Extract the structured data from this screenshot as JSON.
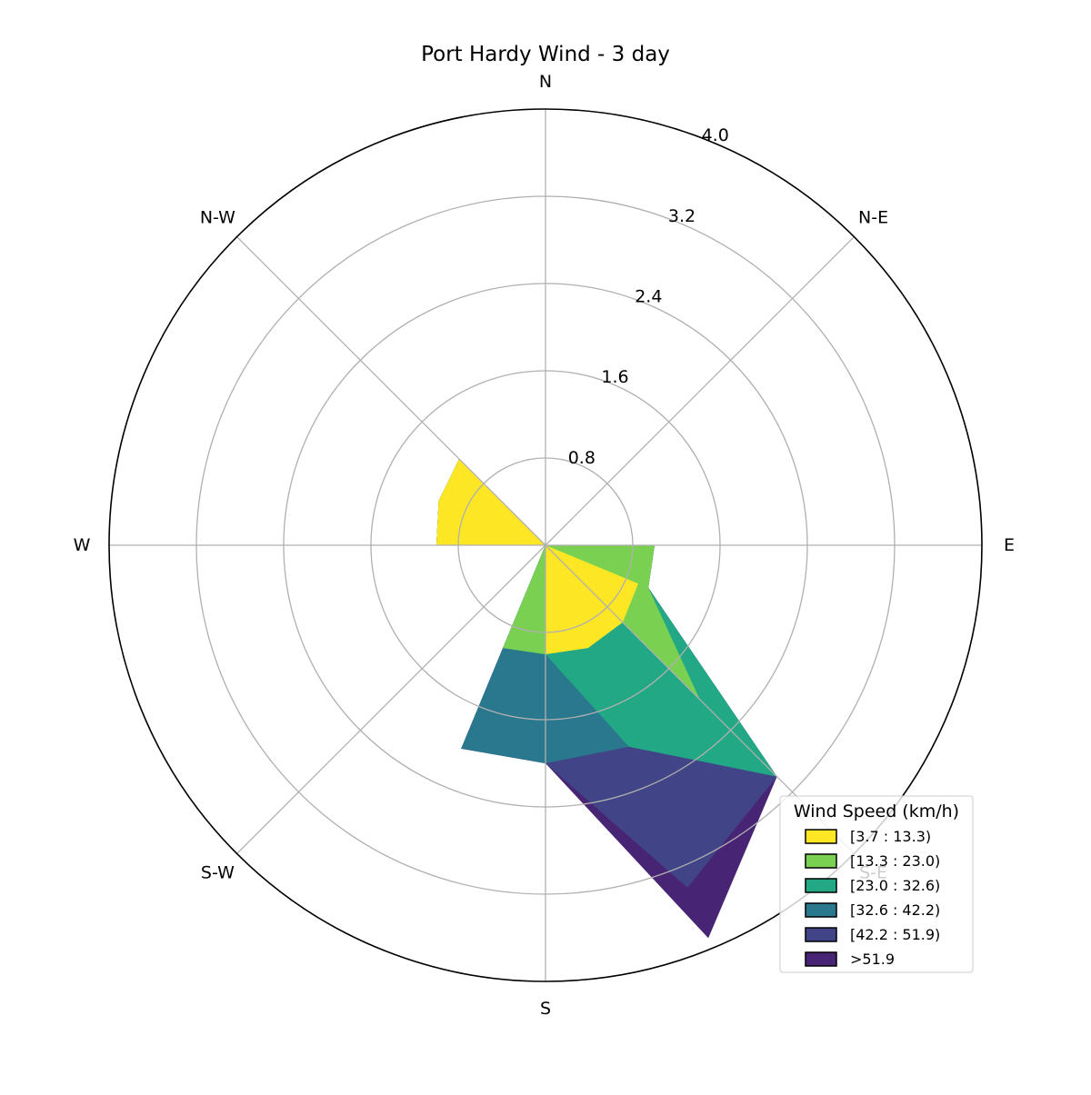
{
  "chart_data": {
    "type": "windrose",
    "title": "Port Hardy Wind - 3 day",
    "directions": [
      "N",
      "N-E",
      "E",
      "S-E",
      "S",
      "S-W",
      "W",
      "N-W"
    ],
    "radial_ticks": [
      "0.8",
      "1.6",
      "2.4",
      "3.2",
      "4.0"
    ],
    "radial_tick_values": [
      0.8,
      1.6,
      2.4,
      3.2,
      4.0
    ],
    "rmax": 4.0,
    "grid": true,
    "sector_angles_deg": [
      0,
      22.5,
      45,
      67.5,
      90,
      112.5,
      135,
      157.5,
      180,
      202.5,
      225,
      247.5,
      270,
      292.5,
      315,
      337.5
    ],
    "legend": {
      "title": "Wind Speed (km/h)",
      "placement": "bottom-right"
    },
    "series": [
      {
        "name": "[3.7 : 13.3)",
        "color": "#fde725",
        "cumulative": [
          0,
          0,
          0,
          0,
          0,
          0.92,
          1.0,
          1.02,
          1.0,
          0,
          0,
          0,
          1.0,
          1.06,
          1.12,
          0
        ]
      },
      {
        "name": "[13.3 : 23.0)",
        "color": "#7ad151",
        "cumulative": [
          0,
          0,
          0,
          0,
          1.0,
          1.02,
          2.0,
          0,
          1.0,
          1.02,
          0,
          0,
          1.0,
          1.06,
          1.12,
          0
        ]
      },
      {
        "name": "[23.0 : 32.6)",
        "color": "#22a884",
        "cumulative": [
          0,
          0,
          0,
          0,
          1.0,
          1.02,
          3.0,
          2.0,
          1.0,
          1.02,
          0,
          0,
          1.0,
          1.06,
          1.12,
          0
        ]
      },
      {
        "name": "[32.6 : 42.2)",
        "color": "#2a788e",
        "cumulative": [
          0,
          0,
          0,
          0,
          1.0,
          1.02,
          3.0,
          2.0,
          2.0,
          2.02,
          0,
          0,
          1.0,
          1.06,
          1.12,
          0
        ]
      },
      {
        "name": "[42.2 : 51.9)",
        "color": "#414487",
        "cumulative": [
          0,
          0,
          0,
          0,
          1.0,
          1.02,
          3.0,
          3.4,
          2.0,
          2.02,
          0,
          0,
          1.0,
          1.06,
          1.12,
          0
        ]
      },
      {
        "name": ">51.9",
        "color": "#482475",
        "cumulative": [
          0,
          0,
          0,
          0,
          1.0,
          1.02,
          3.0,
          3.9,
          2.0,
          2.02,
          0,
          0,
          1.0,
          1.06,
          1.12,
          0
        ]
      }
    ]
  }
}
